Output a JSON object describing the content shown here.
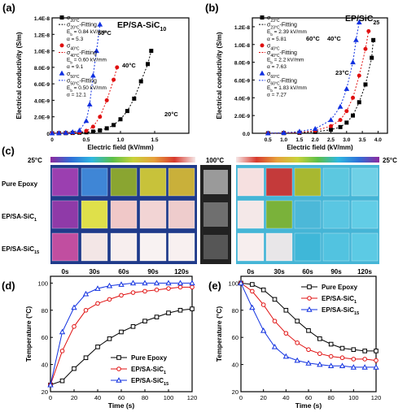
{
  "panels": {
    "a": {
      "label": "(a)",
      "title": "EP/SA-SiC",
      "title_sub": "10"
    },
    "b": {
      "label": "(b)",
      "title": "EP/SiC",
      "title_sub": "25"
    },
    "c": {
      "label": "(c)"
    },
    "d": {
      "label": "(d)"
    },
    "e": {
      "label": "(e)"
    }
  },
  "thermal": {
    "scale_left_min": "25°C",
    "scale_mid": "100°C",
    "scale_right_min": "25°C",
    "rows": [
      "Pure Epoxy",
      "EP/SA-SiC",
      "EP/SA-SiC"
    ],
    "row_subs": [
      "",
      "1",
      "15"
    ],
    "times": [
      "0s",
      "30s",
      "60s",
      "90s",
      "120s"
    ],
    "heating_colors": [
      [
        "#9b3fb0",
        "#3f86d6",
        "#8aa531",
        "#c8c23a",
        "#c9b03a"
      ],
      [
        "#8f3aa8",
        "#dfe04a",
        "#f0c8c8",
        "#f2d4d4",
        "#eecccc"
      ],
      [
        "#c14ea0",
        "#f3e6e6",
        "#f7eeee",
        "#f8f2f2",
        "#f8f0f0"
      ]
    ],
    "cooling_colors": [
      [
        "#f6e0e0",
        "#c43a3a",
        "#a8b830",
        "#5cc8e0",
        "#6fd0e6"
      ],
      [
        "#f4e8e8",
        "#7ab23a",
        "#4cb8d8",
        "#5ac6e2",
        "#62cde6"
      ],
      [
        "#f7eeee",
        "#e8e6e8",
        "#3fb7d8",
        "#52c3e0",
        "#5ccae4"
      ]
    ],
    "gray_colors": [
      "#9a9a9a",
      "#6f6f6f",
      "#565656"
    ]
  },
  "chart_data": [
    {
      "id": "a",
      "type": "scatter",
      "xlabel": "Electric field (kV/mm)",
      "ylabel": "Electrical conductivity (S/m)",
      "xlim": [
        0,
        2.0
      ],
      "ylim": [
        0,
        1.4e-08
      ],
      "xticks": [
        0,
        0.5,
        1.0,
        1.5
      ],
      "xtick_labels": [
        "0",
        "0.5",
        "1.0",
        "1.5"
      ],
      "yticks": [
        0,
        2e-09,
        4e-09,
        6e-09,
        8e-09,
        1e-08,
        1.2e-08,
        1.4e-08
      ],
      "ytick_labels": [
        "0",
        "2.0E-9",
        "4.0E-9",
        "6.0E-9",
        "8.0E-9",
        "1.0E-8",
        "1.2E-8",
        "1.4E-8"
      ],
      "series": [
        {
          "name": "σ20°C",
          "color": "#000000",
          "marker": "square",
          "temp_label": "20°C",
          "x": [
            0,
            0.1,
            0.2,
            0.3,
            0.4,
            0.5,
            0.6,
            0.7,
            0.8,
            0.9,
            1.0,
            1.1,
            1.2,
            1.3,
            1.4,
            1.45
          ],
          "y": [
            0,
            1e-11,
            2e-11,
            4e-11,
            7e-11,
            1.2e-10,
            2e-10,
            3.5e-10,
            6e-10,
            1e-09,
            1.7e-09,
            2.7e-09,
            4.2e-09,
            6.3e-09,
            8.4e-09,
            1e-08
          ]
        },
        {
          "name": "σ40°C",
          "color": "#e01010",
          "marker": "circle",
          "temp_label": "40°C",
          "x": [
            0,
            0.1,
            0.2,
            0.3,
            0.4,
            0.5,
            0.6,
            0.7,
            0.8,
            0.9,
            0.95
          ],
          "y": [
            0,
            1e-11,
            3e-11,
            6e-11,
            1.2e-10,
            3e-10,
            8e-10,
            2e-09,
            4e-09,
            6.5e-09,
            8e-09
          ]
        },
        {
          "name": "σ50°C",
          "color": "#1030e0",
          "marker": "triangle",
          "temp_label": "50°C",
          "x": [
            0,
            0.1,
            0.2,
            0.3,
            0.4,
            0.5,
            0.55,
            0.6,
            0.65,
            0.7
          ],
          "y": [
            0,
            2e-11,
            6e-11,
            1.5e-10,
            3.5e-10,
            1.5e-09,
            3.5e-09,
            7e-09,
            1e-08,
            1.32e-08
          ]
        }
      ],
      "legend": [
        {
          "sym": "σ20°C",
          "text": ""
        },
        {
          "sym": "σ20°C",
          "text": "-Fitting",
          "line": true
        },
        {
          "sym": "",
          "text": "E_b = 0.84 kV/mm"
        },
        {
          "sym": "",
          "text": "α = 5.3"
        },
        {
          "sym": "σ40°C",
          "text": ""
        },
        {
          "sym": "σ40°C",
          "text": "-Fitting",
          "line": true
        },
        {
          "sym": "",
          "text": "E_b = 0.60 kV/mm"
        },
        {
          "sym": "",
          "text": "α = 9.1"
        },
        {
          "sym": "σ50°C",
          "text": ""
        },
        {
          "sym": "σ50°C",
          "text": "-Fitting",
          "line": true
        },
        {
          "sym": "",
          "text": "E_b = 0.50 kV/mm"
        },
        {
          "sym": "",
          "text": "α = 12.1"
        }
      ]
    },
    {
      "id": "b",
      "type": "scatter",
      "xlabel": "Electric field (kV/mm)",
      "ylabel": "Electrical conductivity (S/m)",
      "xlim": [
        0,
        4.3
      ],
      "ylim": [
        0,
        1.3e-08
      ],
      "xticks": [
        0.5,
        1.0,
        1.5,
        2.0,
        2.5,
        3.0,
        3.5,
        4.0
      ],
      "xtick_labels": [
        "0.5",
        "1.0",
        "1.5",
        "2.0",
        "2.5",
        "3.0",
        "3.5",
        "4.0"
      ],
      "yticks": [
        0,
        2e-09,
        4e-09,
        6e-09,
        8e-09,
        1e-08,
        1.2e-08
      ],
      "ytick_labels": [
        "0.0",
        "2.0E-9",
        "4.0E-9",
        "6.0E-9",
        "8.0E-9",
        "1.0E-8",
        "1.2E-8"
      ],
      "series": [
        {
          "name": "σ23°C",
          "color": "#000000",
          "marker": "square",
          "temp_label": "23°C",
          "x": [
            0.5,
            1.0,
            1.5,
            2.0,
            2.5,
            2.8,
            3.0,
            3.2,
            3.4,
            3.6,
            3.8,
            3.85
          ],
          "y": [
            0,
            2e-11,
            6e-11,
            1.5e-10,
            4e-10,
            7e-10,
            1.2e-09,
            2e-09,
            3.5e-09,
            5.5e-09,
            8.5e-09,
            1.05e-08
          ]
        },
        {
          "name": "σ40°C",
          "color": "#e01010",
          "marker": "circle",
          "temp_label": "40°C",
          "x": [
            0.5,
            1.0,
            1.5,
            2.0,
            2.5,
            2.8,
            3.0,
            3.2,
            3.4,
            3.6,
            3.7
          ],
          "y": [
            0,
            3e-11,
            1e-10,
            3e-10,
            8e-10,
            1.5e-09,
            2.5e-09,
            4e-09,
            6.5e-09,
            9.5e-09,
            1.15e-08
          ]
        },
        {
          "name": "σ60°C",
          "color": "#1030e0",
          "marker": "triangle",
          "temp_label": "60°C",
          "x": [
            0.5,
            1.0,
            1.5,
            2.0,
            2.5,
            2.8,
            3.0,
            3.2,
            3.3,
            3.4
          ],
          "y": [
            0,
            5e-11,
            2e-10,
            5e-10,
            1.5e-09,
            3e-09,
            5e-09,
            8e-09,
            1.05e-08,
            1.25e-08
          ]
        }
      ],
      "legend": [
        {
          "sym": "σ23°C",
          "text": ""
        },
        {
          "sym": "σ23°C",
          "text": "-Fitting",
          "line": true
        },
        {
          "sym": "",
          "text": "E_b = 2.39 kV/mm"
        },
        {
          "sym": "",
          "text": "α = 5.81"
        },
        {
          "sym": "σ40°C",
          "text": ""
        },
        {
          "sym": "σ40°C",
          "text": "-Fitting",
          "line": true
        },
        {
          "sym": "",
          "text": "E_b = 2.2 kV/mm"
        },
        {
          "sym": "",
          "text": "α = 7.63"
        },
        {
          "sym": "σ60°C",
          "text": ""
        },
        {
          "sym": "σ60°C",
          "text": "-Fitting",
          "line": true
        },
        {
          "sym": "",
          "text": "E_b = 1.83 kV/mm"
        },
        {
          "sym": "",
          "text": "α = 7.27"
        }
      ]
    },
    {
      "id": "d",
      "type": "line",
      "xlabel": "Time (s)",
      "ylabel": "Temperature (°C)",
      "xlim": [
        0,
        120
      ],
      "ylim": [
        20,
        105
      ],
      "xticks": [
        0,
        20,
        40,
        60,
        80,
        100,
        120
      ],
      "yticks": [
        20,
        40,
        60,
        80,
        100
      ],
      "x": [
        0,
        10,
        20,
        30,
        40,
        50,
        60,
        70,
        80,
        90,
        100,
        110,
        120
      ],
      "series": [
        {
          "name": "Pure Epoxy",
          "color": "#000000",
          "marker": "square",
          "y": [
            25,
            28,
            37,
            45,
            53,
            59,
            64,
            68,
            72,
            75,
            78,
            80,
            81
          ]
        },
        {
          "name": "EP/SA-SiC",
          "sub": "1",
          "color": "#e01010",
          "marker": "circle",
          "y": [
            25,
            50,
            68,
            80,
            85,
            88,
            91,
            93,
            94,
            95,
            96,
            97,
            97
          ]
        },
        {
          "name": "EP/SA-SiC",
          "sub": "15",
          "color": "#1030e0",
          "marker": "triangle",
          "y": [
            25,
            64,
            82,
            92,
            96,
            98,
            99,
            100,
            100,
            100,
            100,
            100,
            100
          ]
        }
      ]
    },
    {
      "id": "e",
      "type": "line",
      "xlabel": "Time (s)",
      "ylabel": "Temperature (°C)",
      "xlim": [
        0,
        120
      ],
      "ylim": [
        20,
        105
      ],
      "xticks": [
        0,
        20,
        40,
        60,
        80,
        100,
        120
      ],
      "yticks": [
        20,
        40,
        60,
        80,
        100
      ],
      "x": [
        0,
        10,
        20,
        30,
        40,
        50,
        60,
        70,
        80,
        90,
        100,
        110,
        120
      ],
      "series": [
        {
          "name": "Pure Epoxy",
          "color": "#000000",
          "marker": "square",
          "y": [
            100,
            99,
            95,
            88,
            80,
            72,
            65,
            59,
            55,
            52,
            51,
            50,
            50
          ]
        },
        {
          "name": "EP/SA-SiC",
          "sub": "1",
          "color": "#e01010",
          "marker": "circle",
          "y": [
            100,
            94,
            84,
            72,
            63,
            56,
            51,
            48,
            46,
            45,
            44,
            44,
            43
          ]
        },
        {
          "name": "EP/SA-SiC",
          "sub": "15",
          "color": "#1030e0",
          "marker": "triangle",
          "y": [
            100,
            82,
            65,
            53,
            46,
            43,
            41,
            40,
            39,
            39,
            38,
            38,
            38
          ]
        }
      ]
    }
  ]
}
